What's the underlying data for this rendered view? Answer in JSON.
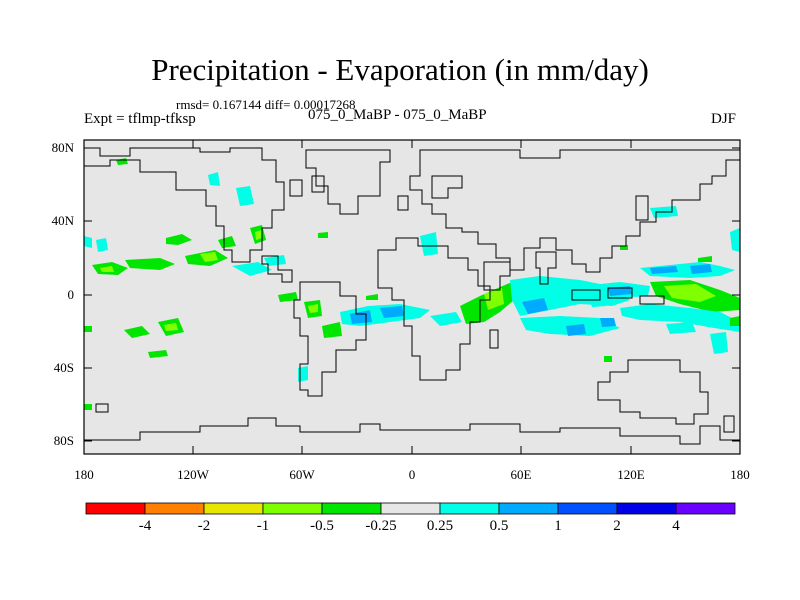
{
  "title": "Precipitation - Evaporation (in mm/day)",
  "stats": "rmsd= 0.167144 diff= 0.00017268",
  "expt_label": "Expt = tflmp-tfksp",
  "case_label": "075_0_MaBP - 075_0_MaBP",
  "season": "DJF",
  "lat_labels": [
    "80N",
    "40N",
    "0",
    "40S",
    "80S"
  ],
  "lon_labels": [
    "180",
    "120W",
    "60W",
    "0",
    "60E",
    "120E",
    "180"
  ],
  "colorbar": {
    "colors": [
      "#ff0000",
      "#ff8000",
      "#e6e600",
      "#80ff00",
      "#00e600",
      "#e6e6e6",
      "#00ffe6",
      "#00aaff",
      "#0050ff",
      "#0000e6",
      "#6a00ff"
    ],
    "labels": [
      "-4",
      "-2",
      "-1",
      "-0.5",
      "-0.25",
      "0.25",
      "0.5",
      "1",
      "2",
      "4"
    ]
  },
  "colors": {
    "ocean_neutral": "#e6e6e6",
    "green_neg": "#00e600",
    "light_green": "#80ff00",
    "cyan_pos": "#00ffe6",
    "light_blue": "#00aaff",
    "blue": "#0050ff"
  }
}
